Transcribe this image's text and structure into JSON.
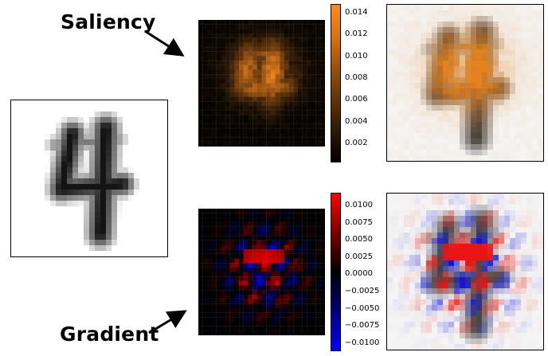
{
  "labels": {
    "saliency": "Saliency",
    "gradient": "Gradient"
  },
  "colorbars": {
    "saliency": {
      "ticks": [
        "0.014",
        "0.012",
        "0.010",
        "0.008",
        "0.006",
        "0.004",
        "0.002"
      ],
      "min_color": "#000000",
      "max_color": "#ff8a1e"
    },
    "gradient": {
      "ticks": [
        "0.0100",
        "0.0075",
        "0.0050",
        "0.0025",
        "0.0000",
        "−0.0025",
        "−0.0050",
        "−0.0075",
        "−0.0100"
      ],
      "neg_color": "#0000ff",
      "mid_color": "#000000",
      "pos_color": "#ff0000"
    }
  },
  "icons": [
    "arrow-icon",
    "arrow-icon"
  ]
}
